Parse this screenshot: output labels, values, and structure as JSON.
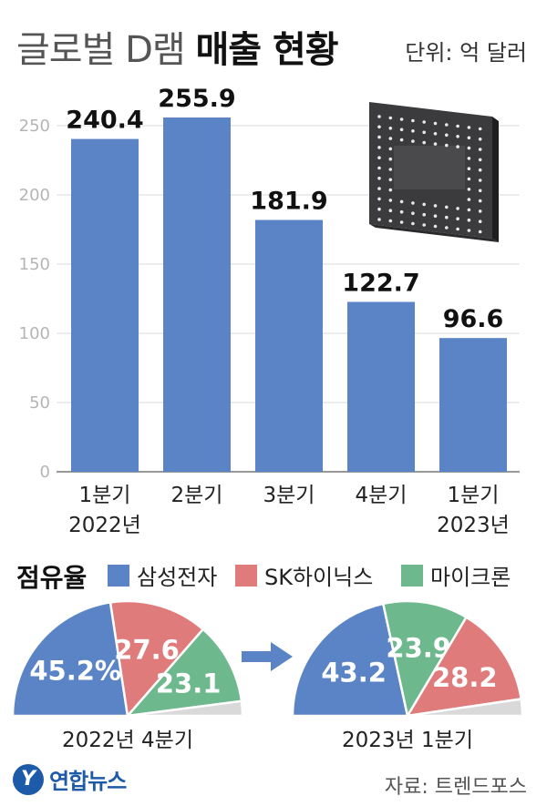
{
  "title": {
    "light": "글로벌 D램",
    "bold": "매출 현황"
  },
  "unit": "단위: 억 달러",
  "chart_data": [
    {
      "type": "bar",
      "categories": [
        [
          "1분기",
          "2022년"
        ],
        [
          "2분기",
          ""
        ],
        [
          "3분기",
          ""
        ],
        [
          "4분기",
          ""
        ],
        [
          "1분기",
          "2023년"
        ]
      ],
      "values": [
        240.4,
        255.9,
        181.9,
        122.7,
        96.6
      ],
      "value_labels": [
        "240.4",
        "255.9",
        "181.9",
        "122.7",
        "96.6"
      ],
      "yticks": [
        0,
        50,
        100,
        150,
        200,
        250
      ],
      "ylim": [
        0,
        260
      ],
      "color": "#5b84c7",
      "grid": true
    },
    {
      "type": "pie",
      "title": "점유율",
      "legend": [
        {
          "name": "삼성전자",
          "color": "#5b84c7"
        },
        {
          "name": "SK하이닉스",
          "color": "#e07b7b"
        },
        {
          "name": "마이크론",
          "color": "#6db88d"
        }
      ],
      "pies": [
        {
          "label": "2022년 4분기",
          "values": [
            45.2,
            27.6,
            23.1
          ],
          "value_labels": [
            "45.2%",
            "27.6",
            "23.1"
          ]
        },
        {
          "label": "2023년 1분기",
          "values": [
            43.2,
            28.2,
            23.9
          ],
          "value_labels": [
            "43.2",
            "28.2",
            "23.9"
          ],
          "order": [
            0,
            2,
            1
          ]
        }
      ],
      "remainder_color": "#d9d9d9"
    }
  ],
  "logo": {
    "mark": "Y",
    "text": "연합뉴스"
  },
  "source": "자료: 트렌드포스",
  "chip_icon": "dram-chip-icon"
}
